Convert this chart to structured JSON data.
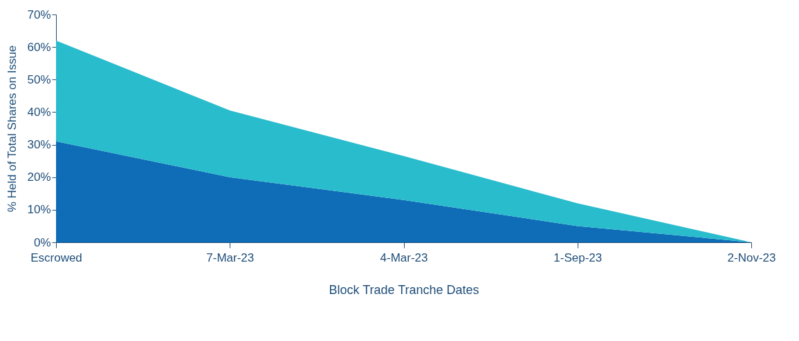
{
  "chart_data": {
    "type": "area",
    "stacked": true,
    "xlabel": "Block Trade Tranche Dates",
    "ylabel": "% Held of Total Shares on Issue",
    "categories": [
      "Escrowed",
      "7-Mar-23",
      "4-Mar-23",
      "1-Sep-23",
      "2-Nov-23"
    ],
    "series": [
      {
        "color": "#0f6db8",
        "values": [
          31,
          20,
          13,
          5,
          0
        ]
      },
      {
        "color": "#29bccd",
        "values": [
          31,
          20.5,
          13.5,
          7,
          0
        ]
      }
    ],
    "ylim": [
      0,
      70
    ],
    "yticks": [
      {
        "value": 0,
        "label": "0%"
      },
      {
        "value": 10,
        "label": "10%"
      },
      {
        "value": 20,
        "label": "20%"
      },
      {
        "value": 30,
        "label": "30%"
      },
      {
        "value": 40,
        "label": "40%"
      },
      {
        "value": 50,
        "label": "50%"
      },
      {
        "value": 60,
        "label": "60%"
      },
      {
        "value": 70,
        "label": "70%"
      }
    ],
    "grid": false,
    "legend": false
  }
}
